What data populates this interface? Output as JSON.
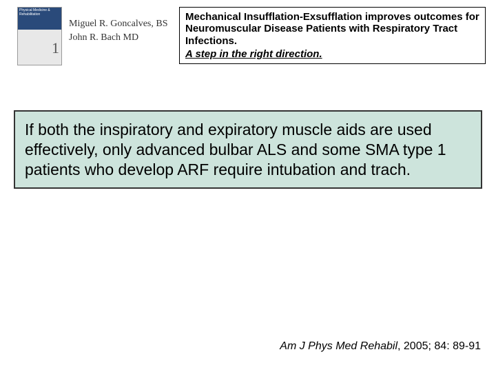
{
  "cover": {
    "top_text": "Physical Medicine & Rehabilitation",
    "issue_num": "1"
  },
  "authors": {
    "line1": "Miguel R. Goncalves, BS",
    "line2": "John R. Bach MD"
  },
  "title": {
    "main": "Mechanical Insufflation-Exsufflation improves outcomes  for Neuromuscular Disease Patients with Respiratory Tract Infections.",
    "sub": "A step in the right direction."
  },
  "body": {
    "text": "If both the inspiratory and expiratory muscle aids are used effectively, only advanced bulbar ALS and some SMA type 1 patients who develop ARF require intubation and trach."
  },
  "citation": {
    "journal": "Am J Phys Med Rehabil",
    "rest": ", 2005; 84: 89-91"
  },
  "colors": {
    "body_bg": "#cde4dc",
    "cover_blue": "#2a4a7a"
  }
}
